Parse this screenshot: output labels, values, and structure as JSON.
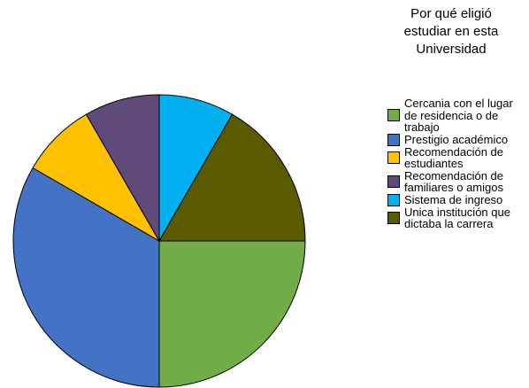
{
  "chart_data": {
    "type": "pie",
    "title": "Por qué eligió estudiar en esta Universidad",
    "categories": [
      "Cercania con el lugar de residencia o de trabajo",
      "Prestigio académico",
      "Recomendación de estudiantes",
      "Recomendación de familiares o amigos",
      "Sistema de ingreso",
      "Unica institución que dictaba la carrera"
    ],
    "values": [
      3,
      4,
      1,
      1,
      1,
      2
    ],
    "colors": [
      "#70ad47",
      "#4472c4",
      "#ffc000",
      "#604a7b",
      "#00b0f0",
      "#5a5a00"
    ],
    "legend": "right"
  }
}
